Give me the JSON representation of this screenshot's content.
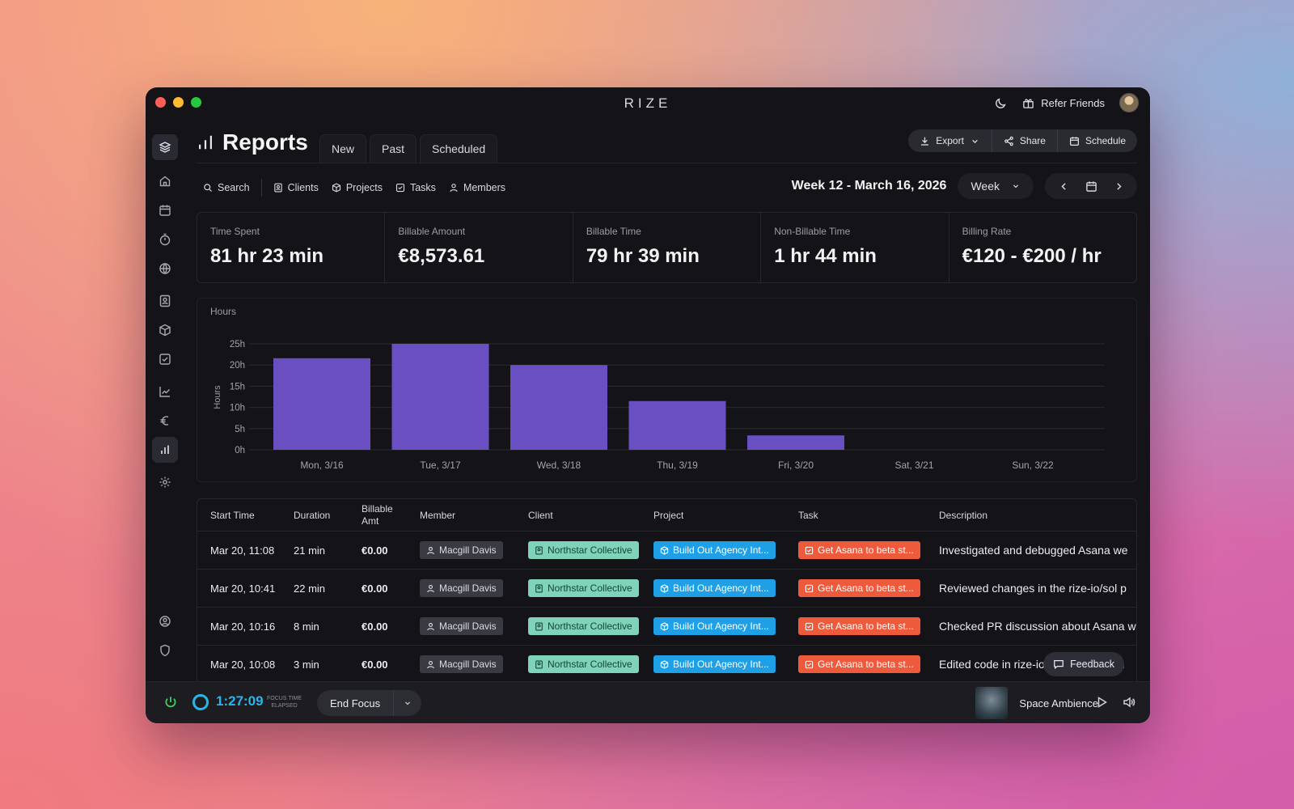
{
  "app": {
    "title": "RIZE",
    "refer_label": "Refer Friends"
  },
  "sidebar": {
    "items": [
      {
        "name": "layers",
        "icon": "layers-icon"
      },
      {
        "name": "home",
        "icon": "home-icon"
      },
      {
        "name": "calendar",
        "icon": "calendar-icon"
      },
      {
        "name": "timer",
        "icon": "stopwatch-icon"
      },
      {
        "name": "globe",
        "icon": "globe-icon"
      },
      {
        "name": "clients",
        "icon": "contact-icon"
      },
      {
        "name": "projects",
        "icon": "cube-icon"
      },
      {
        "name": "tasks",
        "icon": "checkbox-icon"
      },
      {
        "name": "analytics",
        "icon": "line-chart-icon"
      },
      {
        "name": "billing",
        "icon": "euro-icon"
      },
      {
        "name": "reports",
        "icon": "bar-chart-icon",
        "active": true
      },
      {
        "name": "settings",
        "icon": "gear-icon"
      },
      {
        "name": "account",
        "icon": "user-circle-icon"
      },
      {
        "name": "privacy",
        "icon": "shield-icon"
      }
    ]
  },
  "header": {
    "title": "Reports",
    "tabs": [
      "New",
      "Past",
      "Scheduled"
    ],
    "export_label": "Export",
    "share_label": "Share",
    "schedule_label": "Schedule"
  },
  "filters": {
    "search": "Search",
    "clients": "Clients",
    "projects": "Projects",
    "tasks": "Tasks",
    "members": "Members",
    "week_title": "Week 12 - March 16, 2026",
    "period": "Week"
  },
  "stats": [
    {
      "label": "Time Spent",
      "value": "81 hr 23 min"
    },
    {
      "label": "Billable Amount",
      "value": "€8,573.61"
    },
    {
      "label": "Billable Time",
      "value": "79 hr 39 min"
    },
    {
      "label": "Non-Billable Time",
      "value": "1 hr 44 min"
    },
    {
      "label": "Billing Rate",
      "value": "€120 - €200 / hr"
    }
  ],
  "chart_data": {
    "type": "bar",
    "title": "Hours",
    "xlabel": "",
    "ylabel": "Hours",
    "categories": [
      "Mon, 3/16",
      "Tue, 3/17",
      "Wed, 3/18",
      "Thu, 3/19",
      "Fri, 3/20",
      "Sat, 3/21",
      "Sun, 3/22"
    ],
    "values": [
      21.6,
      25.0,
      20.0,
      11.5,
      3.4,
      0,
      0
    ],
    "yticks": [
      "0h",
      "5h",
      "10h",
      "15h",
      "20h",
      "25h"
    ],
    "ylim": [
      0,
      25
    ],
    "bar_color": "#6a4fc2",
    "grid": true
  },
  "table": {
    "headers": {
      "start": "Start Time",
      "duration": "Duration",
      "billable": "Billable Amt",
      "member": "Member",
      "client": "Client",
      "project": "Project",
      "task": "Task",
      "description": "Description"
    },
    "rows": [
      {
        "start": "Mar 20, 11:08",
        "duration": "21 min",
        "billable": "€0.00",
        "member": "Macgill Davis",
        "client": "Northstar Collective",
        "project": "Build Out Agency Int...",
        "task": "Get Asana to beta st...",
        "description": "Investigated and debugged Asana we"
      },
      {
        "start": "Mar 20, 10:41",
        "duration": "22 min",
        "billable": "€0.00",
        "member": "Macgill Davis",
        "client": "Northstar Collective",
        "project": "Build Out Agency Int...",
        "task": "Get Asana to beta st...",
        "description": "Reviewed changes in the rize-io/sol p"
      },
      {
        "start": "Mar 20, 10:16",
        "duration": "8 min",
        "billable": "€0.00",
        "member": "Macgill Davis",
        "client": "Northstar Collective",
        "project": "Build Out Agency Int...",
        "task": "Get Asana to beta st...",
        "description": "Checked PR discussion about Asana w"
      },
      {
        "start": "Mar 20, 10:08",
        "duration": "3 min",
        "billable": "€0.00",
        "member": "Macgill Davis",
        "client": "Northstar Collective",
        "project": "Build Out Agency Int...",
        "task": "Get Asana to beta st...",
        "description": "Edited code in rize-io/sol to handle m"
      }
    ]
  },
  "feedback_label": "Feedback",
  "focus": {
    "timer": "1:27:09",
    "elapsed_line1": "FOCUS TIME",
    "elapsed_line2": "ELAPSED",
    "end_label": "End Focus"
  },
  "ambience": {
    "label": "Space Ambience"
  },
  "colors": {
    "accent": "#29b6ea",
    "client": "#7ed3b8",
    "project": "#1f9fe6",
    "task": "#ee5a3b",
    "power": "#3fcf5c"
  }
}
